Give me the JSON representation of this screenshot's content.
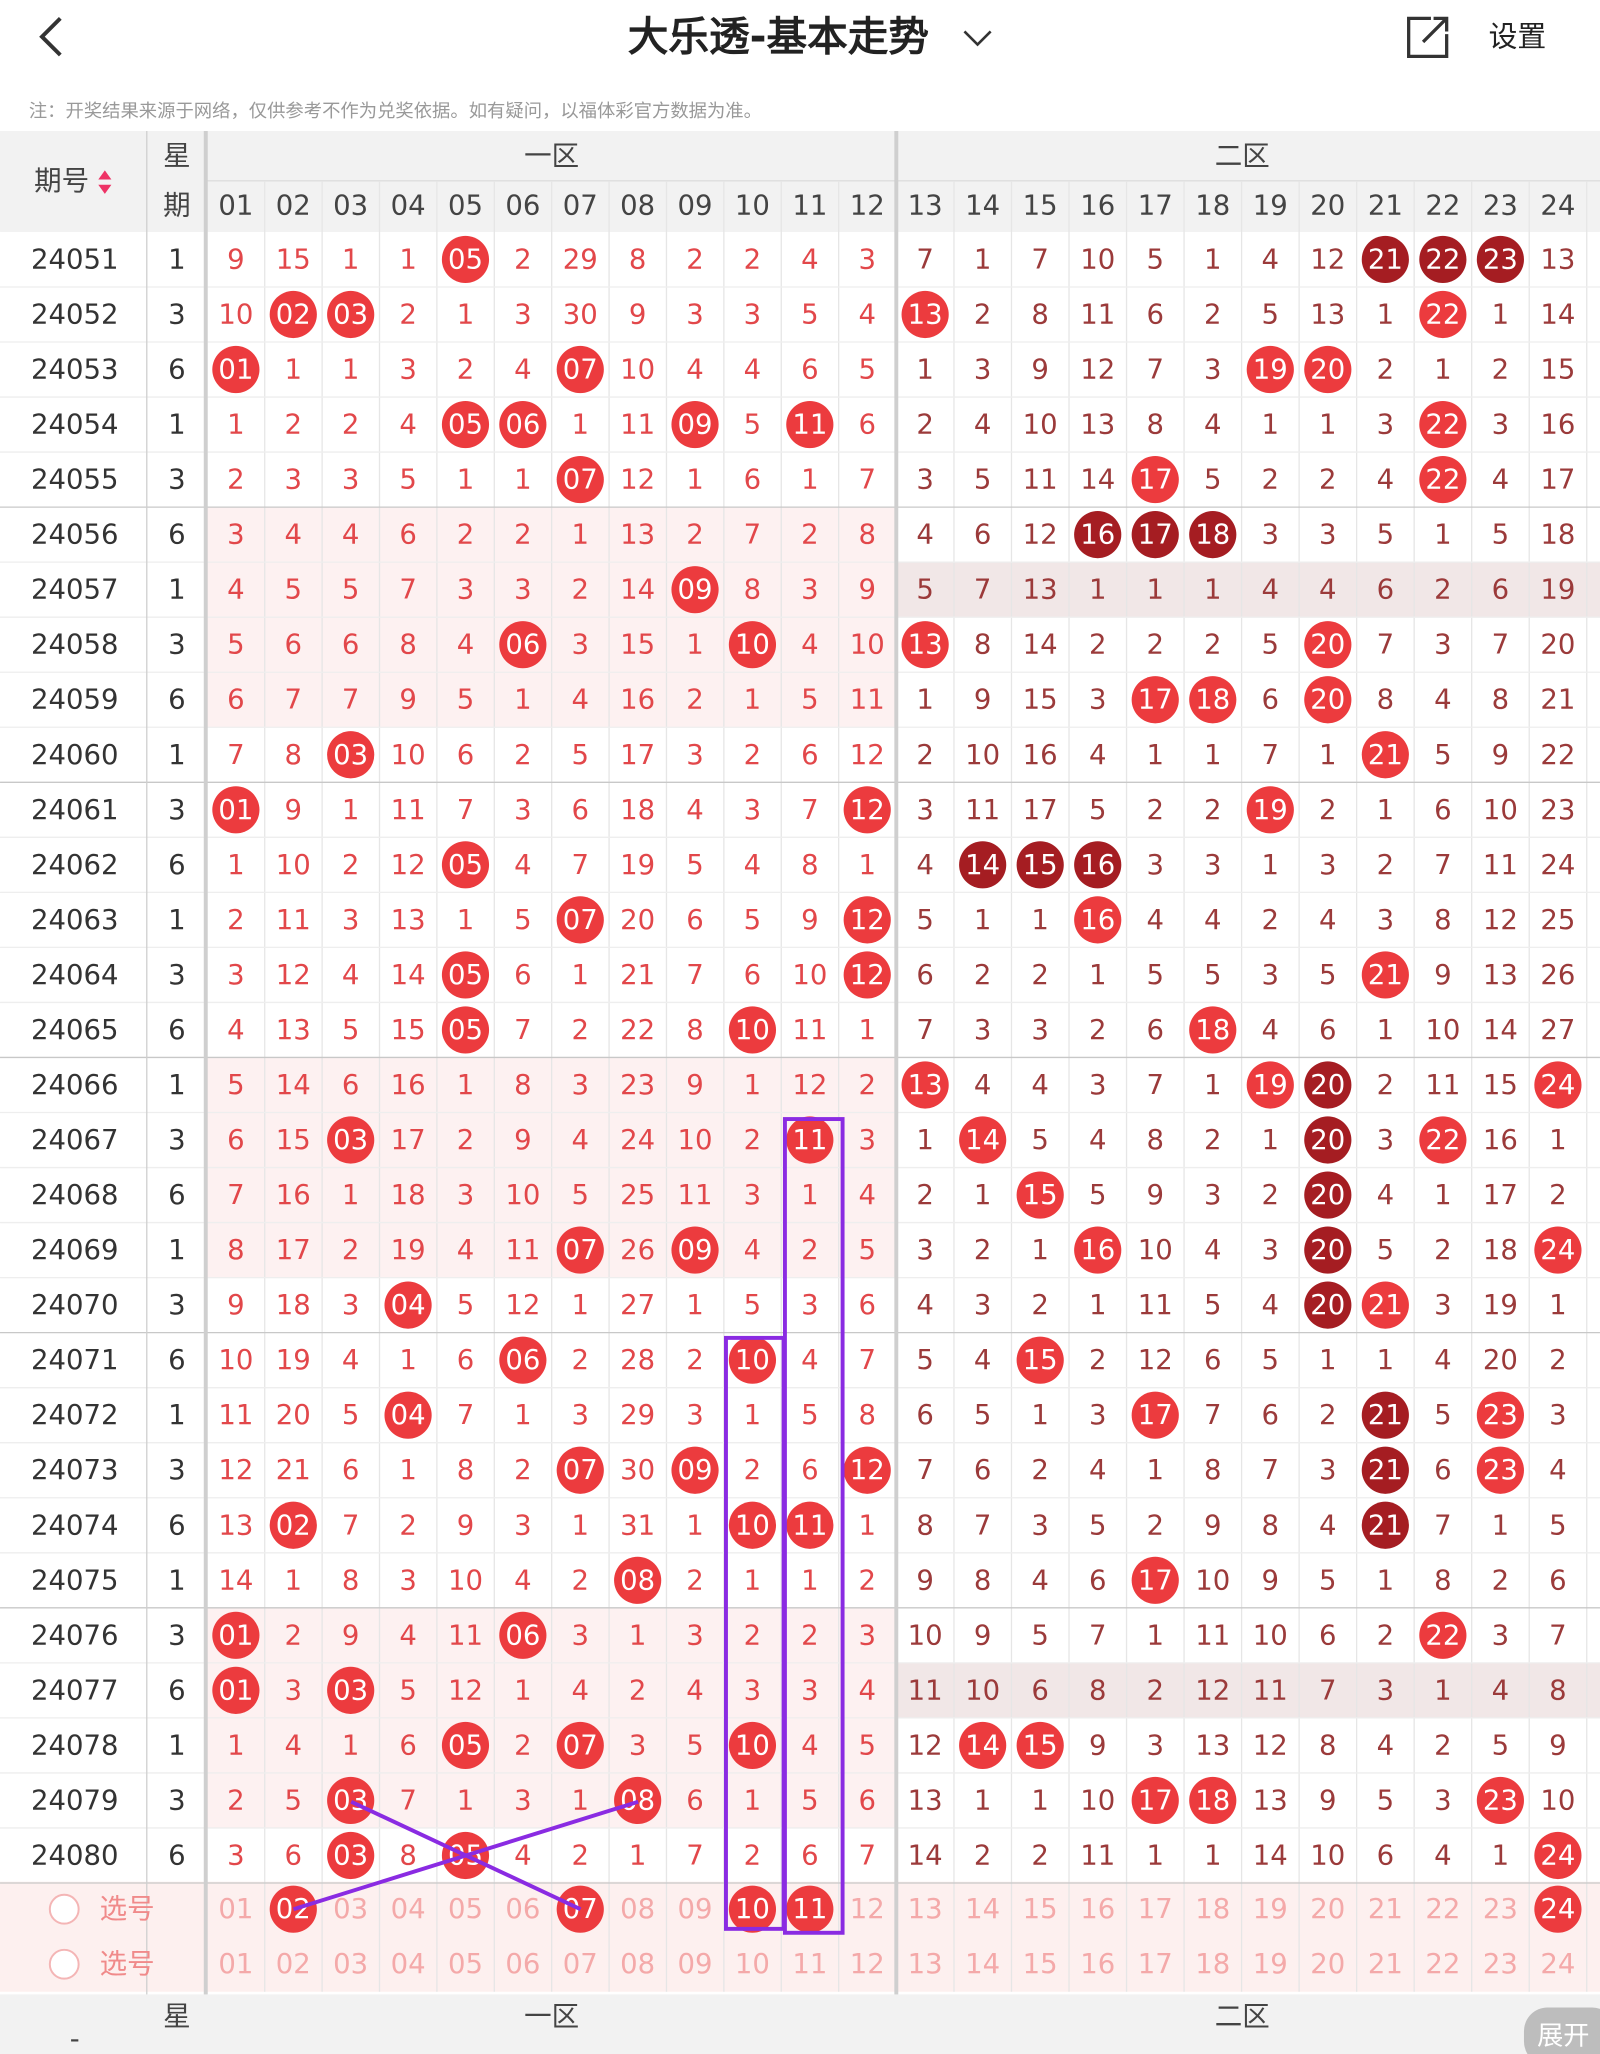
{
  "header": {
    "title": "大乐透-基本走势",
    "settings": "设置"
  },
  "note": "注：开奖结果来源于网络，仅供参考不作为兑奖依据。如有疑问，以福体彩官方数据为准。",
  "table": {
    "period_header": "期号",
    "week_header": [
      "星",
      "期"
    ],
    "zone1": "一区",
    "zone2": "二区",
    "columns": [
      "01",
      "02",
      "03",
      "04",
      "05",
      "06",
      "07",
      "08",
      "09",
      "10",
      "11",
      "12",
      "13",
      "14",
      "15",
      "16",
      "17",
      "18",
      "19",
      "20",
      "21",
      "22",
      "23",
      "24"
    ],
    "rows": [
      {
        "period": "24051",
        "week": "1",
        "cells": [
          "9",
          "15",
          "1",
          "1",
          "05",
          "2",
          "29",
          "8",
          "2",
          "2",
          "4",
          "3",
          "7",
          "1",
          "7",
          "10",
          "5",
          "1",
          "4",
          "12",
          "21",
          "22",
          "23",
          "13"
        ],
        "red": [
          4
        ],
        "dark": [
          20,
          21,
          22
        ]
      },
      {
        "period": "24052",
        "week": "3",
        "cells": [
          "10",
          "02",
          "03",
          "2",
          "1",
          "3",
          "30",
          "9",
          "3",
          "3",
          "5",
          "4",
          "13",
          "2",
          "8",
          "11",
          "6",
          "2",
          "5",
          "13",
          "1",
          "22",
          "1",
          "14"
        ],
        "red": [
          1,
          2,
          12,
          21
        ],
        "dark": []
      },
      {
        "period": "24053",
        "week": "6",
        "cells": [
          "01",
          "1",
          "1",
          "3",
          "2",
          "4",
          "07",
          "10",
          "4",
          "4",
          "6",
          "5",
          "1",
          "3",
          "9",
          "12",
          "7",
          "3",
          "19",
          "20",
          "2",
          "1",
          "2",
          "15"
        ],
        "red": [
          0,
          6,
          18,
          19
        ],
        "dark": []
      },
      {
        "period": "24054",
        "week": "1",
        "cells": [
          "1",
          "2",
          "2",
          "4",
          "05",
          "06",
          "1",
          "11",
          "09",
          "5",
          "11",
          "6",
          "2",
          "4",
          "10",
          "13",
          "8",
          "4",
          "1",
          "1",
          "3",
          "22",
          "3",
          "16"
        ],
        "red": [
          4,
          5,
          8,
          10,
          21
        ],
        "dark": []
      },
      {
        "period": "24055",
        "week": "3",
        "cells": [
          "2",
          "3",
          "3",
          "5",
          "1",
          "1",
          "07",
          "12",
          "1",
          "6",
          "1",
          "7",
          "3",
          "5",
          "11",
          "14",
          "17",
          "5",
          "2",
          "2",
          "4",
          "22",
          "4",
          "17"
        ],
        "red": [
          6,
          16,
          21
        ],
        "dark": []
      },
      {
        "period": "24056",
        "week": "6",
        "cells": [
          "3",
          "4",
          "4",
          "6",
          "2",
          "2",
          "1",
          "13",
          "2",
          "7",
          "2",
          "8",
          "4",
          "6",
          "12",
          "16",
          "17",
          "18",
          "3",
          "3",
          "5",
          "1",
          "5",
          "18"
        ],
        "red": [],
        "dark": [
          15,
          16,
          17
        ]
      },
      {
        "period": "24057",
        "week": "1",
        "cells": [
          "4",
          "5",
          "5",
          "7",
          "3",
          "3",
          "2",
          "14",
          "09",
          "8",
          "3",
          "9",
          "5",
          "7",
          "13",
          "1",
          "1",
          "1",
          "4",
          "4",
          "6",
          "2",
          "6",
          "19"
        ],
        "red": [
          8
        ],
        "dark": []
      },
      {
        "period": "24058",
        "week": "3",
        "cells": [
          "5",
          "6",
          "6",
          "8",
          "4",
          "06",
          "3",
          "15",
          "1",
          "10",
          "4",
          "10",
          "13",
          "8",
          "14",
          "2",
          "2",
          "2",
          "5",
          "20",
          "7",
          "3",
          "7",
          "20"
        ],
        "red": [
          5,
          9,
          12,
          19
        ],
        "dark": []
      },
      {
        "period": "24059",
        "week": "6",
        "cells": [
          "6",
          "7",
          "7",
          "9",
          "5",
          "1",
          "4",
          "16",
          "2",
          "1",
          "5",
          "11",
          "1",
          "9",
          "15",
          "3",
          "17",
          "18",
          "6",
          "20",
          "8",
          "4",
          "8",
          "21"
        ],
        "red": [
          16,
          17,
          19
        ],
        "dark": []
      },
      {
        "period": "24060",
        "week": "1",
        "cells": [
          "7",
          "8",
          "03",
          "10",
          "6",
          "2",
          "5",
          "17",
          "3",
          "2",
          "6",
          "12",
          "2",
          "10",
          "16",
          "4",
          "1",
          "1",
          "7",
          "1",
          "21",
          "5",
          "9",
          "22"
        ],
        "red": [
          2,
          20
        ],
        "dark": []
      },
      {
        "period": "24061",
        "week": "3",
        "cells": [
          "01",
          "9",
          "1",
          "11",
          "7",
          "3",
          "6",
          "18",
          "4",
          "3",
          "7",
          "12",
          "3",
          "11",
          "17",
          "5",
          "2",
          "2",
          "19",
          "2",
          "1",
          "6",
          "10",
          "23"
        ],
        "red": [
          0,
          11,
          18
        ],
        "dark": []
      },
      {
        "period": "24062",
        "week": "6",
        "cells": [
          "1",
          "10",
          "2",
          "12",
          "05",
          "4",
          "7",
          "19",
          "5",
          "4",
          "8",
          "1",
          "4",
          "14",
          "15",
          "16",
          "3",
          "3",
          "1",
          "3",
          "2",
          "7",
          "11",
          "24"
        ],
        "red": [
          4
        ],
        "dark": [
          13,
          14,
          15
        ]
      },
      {
        "period": "24063",
        "week": "1",
        "cells": [
          "2",
          "11",
          "3",
          "13",
          "1",
          "5",
          "07",
          "20",
          "6",
          "5",
          "9",
          "12",
          "5",
          "1",
          "1",
          "16",
          "4",
          "4",
          "2",
          "4",
          "3",
          "8",
          "12",
          "25"
        ],
        "red": [
          6,
          11,
          15
        ],
        "dark": []
      },
      {
        "period": "24064",
        "week": "3",
        "cells": [
          "3",
          "12",
          "4",
          "14",
          "05",
          "6",
          "1",
          "21",
          "7",
          "6",
          "10",
          "12",
          "6",
          "2",
          "2",
          "1",
          "5",
          "5",
          "3",
          "5",
          "21",
          "9",
          "13",
          "26"
        ],
        "red": [
          4,
          11,
          20
        ],
        "dark": []
      },
      {
        "period": "24065",
        "week": "6",
        "cells": [
          "4",
          "13",
          "5",
          "15",
          "05",
          "7",
          "2",
          "22",
          "8",
          "10",
          "11",
          "1",
          "7",
          "3",
          "3",
          "2",
          "6",
          "18",
          "4",
          "6",
          "1",
          "10",
          "14",
          "27"
        ],
        "red": [
          4,
          9,
          17
        ],
        "dark": []
      },
      {
        "period": "24066",
        "week": "1",
        "cells": [
          "5",
          "14",
          "6",
          "16",
          "1",
          "8",
          "3",
          "23",
          "9",
          "1",
          "12",
          "2",
          "13",
          "4",
          "4",
          "3",
          "7",
          "1",
          "19",
          "20",
          "2",
          "11",
          "15",
          "24"
        ],
        "red": [
          12,
          18,
          23
        ],
        "dark": [
          19
        ]
      },
      {
        "period": "24067",
        "week": "3",
        "cells": [
          "6",
          "15",
          "03",
          "17",
          "2",
          "9",
          "4",
          "24",
          "10",
          "2",
          "11",
          "3",
          "1",
          "14",
          "5",
          "4",
          "8",
          "2",
          "1",
          "20",
          "3",
          "22",
          "16",
          "1"
        ],
        "red": [
          2,
          10,
          13,
          21
        ],
        "dark": [
          19
        ]
      },
      {
        "period": "24068",
        "week": "6",
        "cells": [
          "7",
          "16",
          "1",
          "18",
          "3",
          "10",
          "5",
          "25",
          "11",
          "3",
          "1",
          "4",
          "2",
          "1",
          "15",
          "5",
          "9",
          "3",
          "2",
          "20",
          "4",
          "1",
          "17",
          "2"
        ],
        "red": [
          14
        ],
        "dark": [
          19
        ]
      },
      {
        "period": "24069",
        "week": "1",
        "cells": [
          "8",
          "17",
          "2",
          "19",
          "4",
          "11",
          "07",
          "26",
          "09",
          "4",
          "2",
          "5",
          "3",
          "2",
          "1",
          "16",
          "10",
          "4",
          "3",
          "20",
          "5",
          "2",
          "18",
          "24"
        ],
        "red": [
          6,
          8,
          15,
          23
        ],
        "dark": [
          19
        ]
      },
      {
        "period": "24070",
        "week": "3",
        "cells": [
          "9",
          "18",
          "3",
          "04",
          "5",
          "12",
          "1",
          "27",
          "1",
          "5",
          "3",
          "6",
          "4",
          "3",
          "2",
          "1",
          "11",
          "5",
          "4",
          "20",
          "21",
          "3",
          "19",
          "1"
        ],
        "red": [
          3,
          20
        ],
        "dark": [
          19
        ]
      },
      {
        "period": "24071",
        "week": "6",
        "cells": [
          "10",
          "19",
          "4",
          "1",
          "6",
          "06",
          "2",
          "28",
          "2",
          "10",
          "4",
          "7",
          "5",
          "4",
          "15",
          "2",
          "12",
          "6",
          "5",
          "1",
          "1",
          "4",
          "20",
          "2"
        ],
        "red": [
          5,
          9,
          14
        ],
        "dark": []
      },
      {
        "period": "24072",
        "week": "1",
        "cells": [
          "11",
          "20",
          "5",
          "04",
          "7",
          "1",
          "3",
          "29",
          "3",
          "1",
          "5",
          "8",
          "6",
          "5",
          "1",
          "3",
          "17",
          "7",
          "6",
          "2",
          "21",
          "5",
          "23",
          "3"
        ],
        "red": [
          3,
          16,
          22
        ],
        "dark": [
          20
        ]
      },
      {
        "period": "24073",
        "week": "3",
        "cells": [
          "12",
          "21",
          "6",
          "1",
          "8",
          "2",
          "07",
          "30",
          "09",
          "2",
          "6",
          "12",
          "7",
          "6",
          "2",
          "4",
          "1",
          "8",
          "7",
          "3",
          "21",
          "6",
          "23",
          "4"
        ],
        "red": [
          6,
          8,
          11,
          22
        ],
        "dark": [
          20
        ]
      },
      {
        "period": "24074",
        "week": "6",
        "cells": [
          "13",
          "02",
          "7",
          "2",
          "9",
          "3",
          "1",
          "31",
          "1",
          "10",
          "11",
          "1",
          "8",
          "7",
          "3",
          "5",
          "2",
          "9",
          "8",
          "4",
          "21",
          "7",
          "1",
          "5"
        ],
        "red": [
          1,
          9,
          10
        ],
        "dark": [
          20
        ]
      },
      {
        "period": "24075",
        "week": "1",
        "cells": [
          "14",
          "1",
          "8",
          "3",
          "10",
          "4",
          "2",
          "08",
          "2",
          "1",
          "1",
          "2",
          "9",
          "8",
          "4",
          "6",
          "17",
          "10",
          "9",
          "5",
          "1",
          "8",
          "2",
          "6"
        ],
        "red": [
          7,
          16
        ],
        "dark": []
      },
      {
        "period": "24076",
        "week": "3",
        "cells": [
          "01",
          "2",
          "9",
          "4",
          "11",
          "06",
          "3",
          "1",
          "3",
          "2",
          "2",
          "3",
          "10",
          "9",
          "5",
          "7",
          "1",
          "11",
          "10",
          "6",
          "2",
          "22",
          "3",
          "7"
        ],
        "red": [
          0,
          5,
          21
        ],
        "dark": []
      },
      {
        "period": "24077",
        "week": "6",
        "cells": [
          "01",
          "3",
          "03",
          "5",
          "12",
          "1",
          "4",
          "2",
          "4",
          "3",
          "3",
          "4",
          "11",
          "10",
          "6",
          "8",
          "2",
          "12",
          "11",
          "7",
          "3",
          "1",
          "4",
          "8"
        ],
        "red": [
          0,
          2
        ],
        "dark": []
      },
      {
        "period": "24078",
        "week": "1",
        "cells": [
          "1",
          "4",
          "1",
          "6",
          "05",
          "2",
          "07",
          "3",
          "5",
          "10",
          "4",
          "5",
          "12",
          "14",
          "15",
          "9",
          "3",
          "13",
          "12",
          "8",
          "4",
          "2",
          "5",
          "9"
        ],
        "red": [
          4,
          6,
          9,
          13,
          14
        ],
        "dark": []
      },
      {
        "period": "24079",
        "week": "3",
        "cells": [
          "2",
          "5",
          "03",
          "7",
          "1",
          "3",
          "1",
          "08",
          "6",
          "1",
          "5",
          "6",
          "13",
          "1",
          "1",
          "10",
          "17",
          "18",
          "13",
          "9",
          "5",
          "3",
          "23",
          "10"
        ],
        "red": [
          2,
          7,
          16,
          17,
          22
        ],
        "dark": []
      },
      {
        "period": "24080",
        "week": "6",
        "cells": [
          "3",
          "6",
          "03",
          "8",
          "05",
          "4",
          "2",
          "1",
          "7",
          "2",
          "6",
          "7",
          "14",
          "2",
          "2",
          "11",
          "1",
          "1",
          "14",
          "10",
          "6",
          "4",
          "1",
          "24"
        ],
        "red": [
          2,
          4,
          23
        ],
        "dark": []
      }
    ],
    "select_rows": [
      {
        "label": "选号",
        "cells": [
          "01",
          "02",
          "03",
          "04",
          "05",
          "06",
          "07",
          "08",
          "09",
          "10",
          "11",
          "12",
          "13",
          "14",
          "15",
          "16",
          "17",
          "18",
          "19",
          "20",
          "21",
          "22",
          "23",
          "24"
        ],
        "red": [
          1,
          6,
          9,
          10,
          23
        ]
      },
      {
        "label": "选号",
        "cells": [
          "01",
          "02",
          "03",
          "04",
          "05",
          "06",
          "07",
          "08",
          "09",
          "10",
          "11",
          "12",
          "13",
          "14",
          "15",
          "16",
          "17",
          "18",
          "19",
          "20",
          "21",
          "22",
          "23",
          "24"
        ],
        "red": []
      }
    ]
  },
  "footer_header": {
    "dash": "-",
    "week": "星",
    "zone1": "一区",
    "zone2": "二区",
    "expand": "展开"
  }
}
